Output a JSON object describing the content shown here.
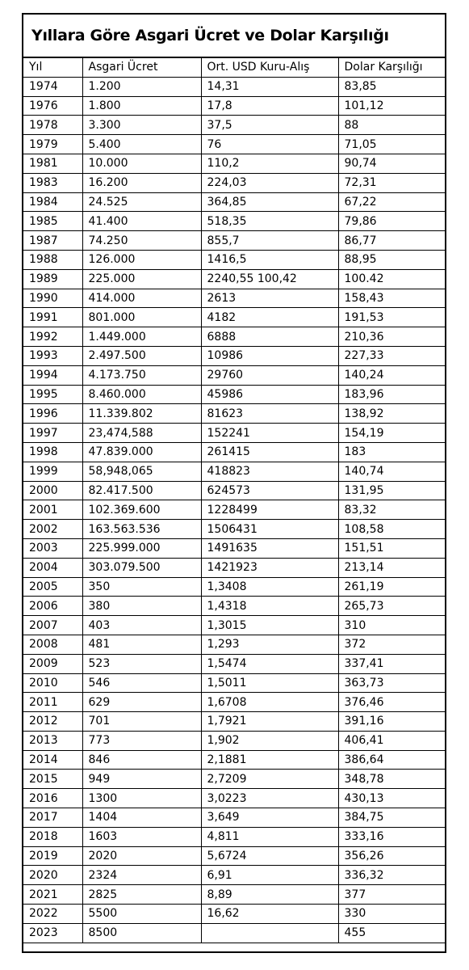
{
  "title": "Yıllara Göre Asgari Ücret ve Dolar Karşılığı",
  "columns": [
    "Yıl",
    "Asgari Ücret",
    "Ort. USD Kuru-Alış",
    "Dolar Karşılığı"
  ],
  "rows": [
    [
      "1974",
      "1.200",
      "14,31",
      "83,85"
    ],
    [
      "1976",
      "1.800",
      "17,8",
      "101,12"
    ],
    [
      "1978",
      "3.300",
      "37,5",
      "88"
    ],
    [
      "1979",
      "5.400",
      "76",
      "71,05"
    ],
    [
      "1981",
      "10.000",
      "110,2",
      "90,74"
    ],
    [
      "1983",
      "16.200",
      "224,03",
      "72,31"
    ],
    [
      "1984",
      "24.525",
      "364,85",
      "67,22"
    ],
    [
      "1985",
      "41.400",
      "518,35",
      "79,86"
    ],
    [
      "1987",
      "74.250",
      "855,7",
      "86,77"
    ],
    [
      "1988",
      "126.000",
      "1416,5",
      "88,95"
    ],
    [
      "1989",
      "225.000",
      "2240,55   100,42",
      "100.42"
    ],
    [
      "1990",
      "414.000",
      "2613",
      "158,43"
    ],
    [
      "1991",
      "801.000",
      "4182",
      "191,53"
    ],
    [
      "1992",
      "1.449.000",
      "6888",
      "210,36"
    ],
    [
      "1993",
      "2.497.500",
      "10986",
      "227,33"
    ],
    [
      "1994",
      "4.173.750",
      "29760",
      "140,24"
    ],
    [
      "1995",
      "8.460.000",
      "45986",
      "183,96"
    ],
    [
      "1996",
      "11.339.802",
      "81623",
      "138,92"
    ],
    [
      "1997",
      "23,474,588",
      "152241",
      "154,19"
    ],
    [
      "1998",
      "47.839.000",
      "261415",
      "183"
    ],
    [
      "1999",
      "58,948,065",
      "418823",
      "140,74"
    ],
    [
      "2000",
      "82.417.500",
      "624573",
      "131,95"
    ],
    [
      "2001",
      "102.369.600",
      "1228499",
      "83,32"
    ],
    [
      "2002",
      "163.563.536",
      "1506431",
      "108,58"
    ],
    [
      "2003",
      "225.999.000",
      "1491635",
      "151,51"
    ],
    [
      "2004",
      "303.079.500",
      "1421923",
      "213,14"
    ],
    [
      "2005",
      "350",
      "1,3408",
      "261,19"
    ],
    [
      "2006",
      "380",
      "1,4318",
      "265,73"
    ],
    [
      "2007",
      "403",
      "1,3015",
      "310"
    ],
    [
      "2008",
      "481",
      "1,293",
      "372"
    ],
    [
      "2009",
      "523",
      "1,5474",
      "337,41"
    ],
    [
      "2010",
      "546",
      "1,5011",
      "363,73"
    ],
    [
      "2011",
      "629",
      "1,6708",
      "376,46"
    ],
    [
      "2012",
      "701",
      "1,7921",
      "391,16"
    ],
    [
      "2013",
      "773",
      "1,902",
      "406,41"
    ],
    [
      "2014",
      "846",
      "2,1881",
      "386,64"
    ],
    [
      "2015",
      "949",
      "2,7209",
      "348,78"
    ],
    [
      "2016",
      "1300",
      "3,0223",
      "430,13"
    ],
    [
      "2017",
      "1404",
      "3,649",
      "384,75"
    ],
    [
      "2018",
      "1603",
      "4,811",
      "333,16"
    ],
    [
      "2019",
      "2020",
      "5,6724",
      "356,26"
    ],
    [
      "2020",
      "2324",
      "6,91",
      "336,32"
    ],
    [
      "2021",
      "2825",
      "8,89",
      "377"
    ],
    [
      "2022",
      "5500",
      "16,62",
      "330"
    ],
    [
      "2023",
      "8500",
      "",
      "455"
    ]
  ]
}
